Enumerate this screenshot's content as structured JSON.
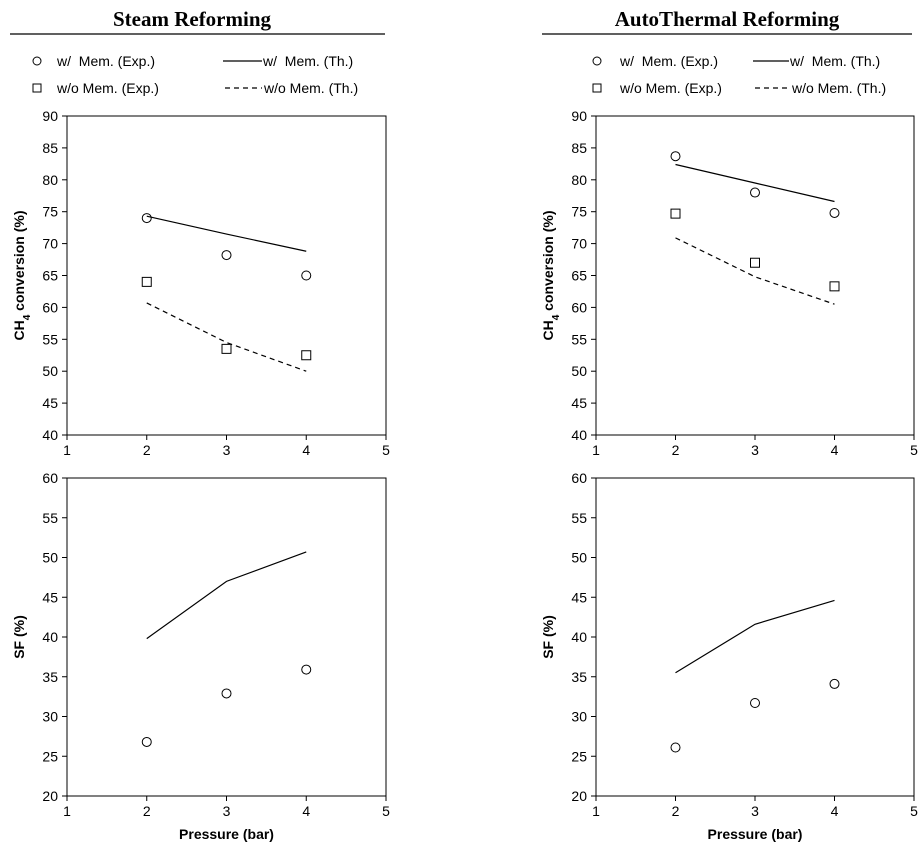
{
  "columns": [
    {
      "title": "Steam Reforming",
      "legend": [
        {
          "marker": "circle",
          "label": "w/  Mem. (Exp.)"
        },
        {
          "marker": "solid-line",
          "label": "w/  Mem. (Th.)"
        },
        {
          "marker": "square",
          "label": "w/o Mem. (Exp.)"
        },
        {
          "marker": "dashed-line",
          "label": "w/o Mem. (Th.)"
        }
      ]
    },
    {
      "title": "AutoThermal Reforming",
      "legend": [
        {
          "marker": "circle",
          "label": "w/  Mem. (Exp.)"
        },
        {
          "marker": "solid-line",
          "label": "w/  Mem. (Th.)"
        },
        {
          "marker": "square",
          "label": "w/o Mem. (Exp.)"
        },
        {
          "marker": "dashed-line",
          "label": "w/o Mem. (Th.)"
        }
      ]
    }
  ],
  "chart_data": [
    {
      "type": "line",
      "title": "Steam Reforming",
      "xlabel": "",
      "ylabel": "CH4 conversion (%)",
      "ylabel_parts": {
        "pre": "CH",
        "sub": "4",
        "post": " conversion (%)"
      },
      "xlim": [
        1,
        5
      ],
      "ylim": [
        40,
        90
      ],
      "xticks": [
        1,
        2,
        3,
        4,
        5
      ],
      "yticks": [
        40,
        45,
        50,
        55,
        60,
        65,
        70,
        75,
        80,
        85,
        90
      ],
      "grid": false,
      "series": [
        {
          "name": "w/  Mem. (Exp.)",
          "style": "circle",
          "x": [
            2,
            3,
            4
          ],
          "y": [
            74,
            68.2,
            65
          ]
        },
        {
          "name": "w/  Mem. (Th.)",
          "style": "solid",
          "x": [
            2,
            3,
            4
          ],
          "y": [
            74.3,
            71.5,
            68.8
          ]
        },
        {
          "name": "w/o Mem. (Exp.)",
          "style": "square",
          "x": [
            2,
            3,
            4
          ],
          "y": [
            64,
            53.5,
            52.5
          ]
        },
        {
          "name": "w/o Mem. (Th.)",
          "style": "dashed",
          "x": [
            2,
            3,
            4
          ],
          "y": [
            60.7,
            54.5,
            50
          ]
        }
      ]
    },
    {
      "type": "line",
      "title": "AutoThermal Reforming",
      "xlabel": "",
      "ylabel": "CH4 conversion (%)",
      "ylabel_parts": {
        "pre": "CH",
        "sub": "4",
        "post": " conversion (%)"
      },
      "xlim": [
        1,
        5
      ],
      "ylim": [
        40,
        90
      ],
      "xticks": [
        1,
        2,
        3,
        4,
        5
      ],
      "yticks": [
        40,
        45,
        50,
        55,
        60,
        65,
        70,
        75,
        80,
        85,
        90
      ],
      "grid": false,
      "series": [
        {
          "name": "w/  Mem. (Exp.)",
          "style": "circle",
          "x": [
            2,
            3,
            4
          ],
          "y": [
            83.7,
            78,
            74.8
          ]
        },
        {
          "name": "w/  Mem. (Th.)",
          "style": "solid",
          "x": [
            2,
            3,
            4
          ],
          "y": [
            82.4,
            79.5,
            76.6
          ]
        },
        {
          "name": "w/o Mem. (Exp.)",
          "style": "square",
          "x": [
            2,
            3,
            4
          ],
          "y": [
            74.7,
            67,
            63.3
          ]
        },
        {
          "name": "w/o Mem. (Th.)",
          "style": "dashed",
          "x": [
            2,
            3,
            4
          ],
          "y": [
            70.9,
            64.8,
            60.5
          ]
        }
      ]
    },
    {
      "type": "line",
      "title": "",
      "xlabel": "Pressure (bar)",
      "ylabel": "SF (%)",
      "xlim": [
        1,
        5
      ],
      "ylim": [
        20,
        60
      ],
      "xticks": [
        1,
        2,
        3,
        4,
        5
      ],
      "yticks": [
        20,
        25,
        30,
        35,
        40,
        45,
        50,
        55,
        60
      ],
      "grid": false,
      "series": [
        {
          "name": "w/  Mem. (Exp.)",
          "style": "circle",
          "x": [
            2,
            3,
            4
          ],
          "y": [
            26.8,
            32.9,
            35.9
          ]
        },
        {
          "name": "w/  Mem. (Th.)",
          "style": "solid",
          "x": [
            2,
            3,
            4
          ],
          "y": [
            39.8,
            47,
            50.7
          ]
        }
      ]
    },
    {
      "type": "line",
      "title": "",
      "xlabel": "Pressure (bar)",
      "ylabel": "SF (%)",
      "xlim": [
        1,
        5
      ],
      "ylim": [
        20,
        60
      ],
      "xticks": [
        1,
        2,
        3,
        4,
        5
      ],
      "yticks": [
        20,
        25,
        30,
        35,
        40,
        45,
        50,
        55,
        60
      ],
      "grid": false,
      "series": [
        {
          "name": "w/  Mem. (Exp.)",
          "style": "circle",
          "x": [
            2,
            3,
            4
          ],
          "y": [
            26.1,
            31.7,
            34.1
          ]
        },
        {
          "name": "w/  Mem. (Th.)",
          "style": "solid",
          "x": [
            2,
            3,
            4
          ],
          "y": [
            35.5,
            41.6,
            44.6
          ]
        }
      ]
    }
  ]
}
